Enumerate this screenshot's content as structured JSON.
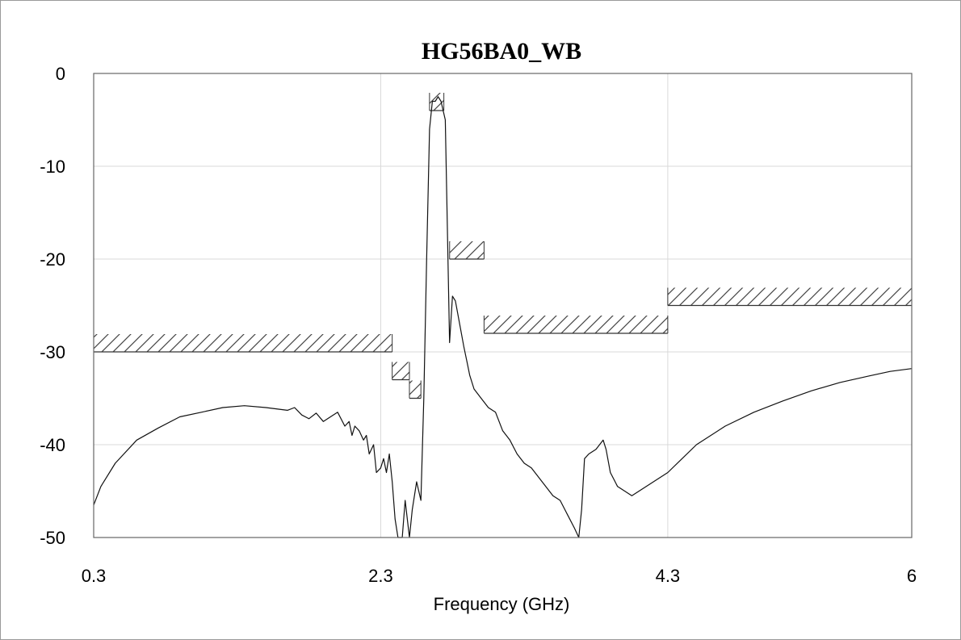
{
  "chart_data": {
    "type": "line",
    "title": "HG56BA0_WB",
    "xlabel": "Frequency (GHz)",
    "ylabel": "",
    "xlim": [
      0.3,
      6.0
    ],
    "ylim": [
      -50,
      0
    ],
    "x_ticks": [
      "0.3",
      "2.3",
      "4.3",
      "6"
    ],
    "x_tick_values": [
      0.3,
      2.3,
      4.3,
      6.0
    ],
    "y_ticks": [
      "0",
      "-10",
      "-20",
      "-30",
      "-40",
      "-50"
    ],
    "y_tick_values": [
      0,
      -10,
      -20,
      -30,
      -40,
      -50
    ],
    "x_grid_values": [
      0.3,
      2.3,
      4.3,
      6.0
    ],
    "grid": true,
    "legend": "none",
    "series": [
      {
        "x": [
          0.3,
          0.35,
          0.45,
          0.6,
          0.75,
          0.9,
          1.05,
          1.2,
          1.35,
          1.5,
          1.65,
          1.7,
          1.75,
          1.8,
          1.85,
          1.9,
          1.95,
          2.0,
          2.05,
          2.08,
          2.1,
          2.12,
          2.15,
          2.18,
          2.2,
          2.22,
          2.25,
          2.27,
          2.3,
          2.32,
          2.34,
          2.36,
          2.38,
          2.4,
          2.42,
          2.45,
          2.47,
          2.5,
          2.52,
          2.55,
          2.58,
          2.6,
          2.62,
          2.64,
          2.66,
          2.68,
          2.7,
          2.72,
          2.75,
          2.78,
          2.8,
          2.82,
          2.85,
          2.88,
          2.9,
          2.92,
          2.95,
          3.0,
          3.05,
          3.1,
          3.15,
          3.2,
          3.25,
          3.3,
          3.35,
          3.4,
          3.45,
          3.5,
          3.55,
          3.6,
          3.65,
          3.68,
          3.7,
          3.72,
          3.75,
          3.8,
          3.85,
          3.87,
          3.9,
          3.95,
          4.0,
          4.05,
          4.1,
          4.15,
          4.2,
          4.3,
          4.4,
          4.5,
          4.7,
          4.9,
          5.1,
          5.3,
          5.5,
          5.7,
          5.85,
          6.0
        ],
        "values": [
          -46.5,
          -44.5,
          -42.0,
          -39.5,
          -38.2,
          -37.0,
          -36.5,
          -36.0,
          -35.8,
          -36.0,
          -36.3,
          -36.0,
          -36.8,
          -37.2,
          -36.6,
          -37.5,
          -37.0,
          -36.5,
          -38.0,
          -37.5,
          -39.0,
          -38.0,
          -38.5,
          -39.5,
          -39.0,
          -41.0,
          -40.0,
          -43.0,
          -42.5,
          -41.5,
          -43.0,
          -41.0,
          -44.0,
          -48.0,
          -50.0,
          -50.0,
          -46.0,
          -50.0,
          -47.0,
          -44.0,
          -46.0,
          -35.0,
          -20.0,
          -6.0,
          -3.0,
          -3.0,
          -2.5,
          -3.0,
          -5.0,
          -29.0,
          -24.0,
          -24.5,
          -27.0,
          -29.5,
          -31.0,
          -32.5,
          -34.0,
          -35.0,
          -36.0,
          -36.5,
          -38.5,
          -39.5,
          -41.0,
          -42.0,
          -42.5,
          -43.5,
          -44.5,
          -45.5,
          -46.0,
          -47.5,
          -49.0,
          -50.0,
          -47.0,
          -41.5,
          -41.0,
          -40.5,
          -39.5,
          -40.5,
          -43.0,
          -44.5,
          -45.0,
          -45.5,
          -45.0,
          -44.5,
          -44.0,
          -43.0,
          -41.5,
          -40.0,
          -38.0,
          -36.5,
          -35.3,
          -34.2,
          -33.3,
          -32.6,
          -32.1,
          -31.8
        ]
      }
    ],
    "masks": [
      {
        "x": [
          0.3,
          2.38
        ],
        "value": -30
      },
      {
        "x": [
          2.38,
          2.5
        ],
        "value": -33
      },
      {
        "x": [
          2.5,
          2.58
        ],
        "value": -35
      },
      {
        "x": [
          2.64,
          2.74
        ],
        "value": -4
      },
      {
        "x": [
          2.78,
          3.02
        ],
        "value": -20
      },
      {
        "x": [
          3.02,
          4.3
        ],
        "value": -28
      },
      {
        "x": [
          4.3,
          6.0
        ],
        "value": -25
      }
    ]
  }
}
